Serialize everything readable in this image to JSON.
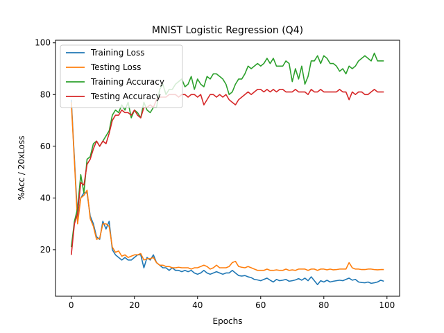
{
  "chart_data": {
    "type": "line",
    "title": "MNIST Logistic Regression (Q4)",
    "xlabel": "Epochs",
    "ylabel": "%Acc / 20xLoss",
    "xlim": [
      -5,
      104
    ],
    "ylim": [
      2,
      101
    ],
    "xticks": [
      0,
      20,
      40,
      60,
      80,
      100
    ],
    "yticks": [
      20,
      40,
      60,
      80,
      100
    ],
    "grid": false,
    "legend_position": "top-left",
    "x": [
      0,
      1,
      2,
      3,
      4,
      5,
      6,
      7,
      8,
      9,
      10,
      11,
      12,
      13,
      14,
      15,
      16,
      17,
      18,
      19,
      20,
      21,
      22,
      23,
      24,
      25,
      26,
      27,
      28,
      29,
      30,
      31,
      32,
      33,
      34,
      35,
      36,
      37,
      38,
      39,
      40,
      41,
      42,
      43,
      44,
      45,
      46,
      47,
      48,
      49,
      50,
      51,
      52,
      53,
      54,
      55,
      56,
      57,
      58,
      59,
      60,
      61,
      62,
      63,
      64,
      65,
      66,
      67,
      68,
      69,
      70,
      71,
      72,
      73,
      74,
      75,
      76,
      77,
      78,
      79,
      80,
      81,
      82,
      83,
      84,
      85,
      86,
      87,
      88,
      89,
      90,
      91,
      92,
      93,
      94,
      95,
      96,
      97,
      98,
      99
    ],
    "series": [
      {
        "name": "Training Loss",
        "color": "#1f77b4",
        "values": [
          78,
          55,
          32,
          40,
          42,
          42,
          33,
          30,
          25,
          24,
          31,
          28,
          31,
          20,
          18,
          17,
          16,
          17,
          16,
          16,
          17,
          18,
          18,
          13,
          17,
          16,
          18,
          15,
          14,
          13,
          13,
          12,
          13,
          12,
          12,
          11.5,
          12,
          11.5,
          12,
          11,
          10.5,
          11,
          12,
          11,
          10.5,
          11,
          11.5,
          11,
          10.5,
          11,
          11,
          12,
          11,
          10,
          9.8,
          10,
          9.5,
          9.2,
          8.5,
          8.3,
          8,
          8.5,
          9,
          8.2,
          7.5,
          8.5,
          8,
          8.2,
          8.5,
          7.8,
          8,
          8.3,
          8.8,
          8.2,
          9,
          8,
          9.5,
          8,
          6.5,
          8,
          7.5,
          8.2,
          7.5,
          7.8,
          8,
          8.2,
          8,
          8.5,
          9,
          8.2,
          8.5,
          7.5,
          7.3,
          7.2,
          7.5,
          7,
          7.2,
          7.5,
          8.2,
          7.8
        ]
      },
      {
        "name": "Testing Loss",
        "color": "#ff7f0e",
        "values": [
          77,
          54,
          30,
          40,
          41,
          43,
          32,
          29,
          24,
          24.5,
          30,
          30,
          29,
          21,
          19,
          19.5,
          17.5,
          18,
          17,
          17.5,
          18,
          18,
          18.5,
          16,
          16.5,
          16.5,
          17,
          15,
          14,
          14,
          13.5,
          13.5,
          13,
          13,
          13.2,
          13,
          13,
          13,
          12.5,
          13,
          13,
          13.5,
          14,
          13.5,
          12.5,
          13,
          14,
          13,
          13,
          13,
          13.5,
          15,
          15.5,
          13.5,
          13.2,
          13,
          13.5,
          13,
          12.5,
          12,
          12,
          12,
          12.5,
          12,
          12,
          12.2,
          12,
          12,
          12.5,
          12,
          12.2,
          12,
          12.5,
          12.5,
          12.5,
          12,
          12.5,
          12.5,
          12,
          12.5,
          12.5,
          12.2,
          12.5,
          12.2,
          12.3,
          12.5,
          12.5,
          12.5,
          15,
          13,
          12.5,
          12.5,
          12.3,
          12.3,
          12.5,
          12.5,
          12.3,
          12.2,
          12.3,
          12.3
        ]
      },
      {
        "name": "Training Accuracy",
        "color": "#2ca02c",
        "values": [
          21,
          31,
          36,
          49,
          42,
          55,
          56,
          61,
          62,
          60,
          62,
          64,
          66,
          72,
          74,
          73,
          76,
          74,
          77,
          71,
          74,
          73,
          71,
          77,
          74,
          73,
          75,
          75,
          82,
          84,
          80,
          82,
          82,
          84,
          85,
          86,
          83,
          84,
          87,
          82,
          86,
          84,
          83,
          87,
          86,
          88,
          88,
          87,
          86,
          84,
          80,
          81,
          84,
          86,
          86,
          88,
          91,
          90,
          91,
          92,
          91,
          92,
          94,
          92,
          94,
          91,
          91,
          91,
          93,
          92,
          85,
          90,
          86,
          91,
          84,
          87,
          93,
          93,
          95,
          92,
          95,
          94,
          92,
          92,
          91,
          89,
          90,
          88,
          91,
          90,
          91,
          93,
          94,
          95,
          94,
          93,
          96,
          93,
          93,
          93
        ]
      },
      {
        "name": "Testing Accuracy",
        "color": "#d62728",
        "values": [
          18,
          30,
          34,
          46,
          45,
          53,
          55,
          59,
          62,
          60,
          62,
          61,
          65,
          70,
          72,
          72,
          74,
          73,
          73,
          72,
          74,
          72,
          71,
          75,
          75,
          76,
          75,
          78,
          79,
          79,
          79,
          80,
          80,
          80,
          79,
          80,
          80,
          79,
          80,
          80,
          79,
          80,
          76,
          78,
          80,
          80,
          79,
          80,
          79,
          80,
          78,
          77,
          76,
          78,
          79,
          80,
          81,
          80,
          81,
          82,
          82,
          81,
          82,
          81,
          82,
          81,
          82,
          82,
          81,
          81,
          81,
          82,
          81,
          81,
          81,
          80,
          82,
          81,
          81,
          82,
          81,
          81,
          81,
          81,
          81,
          82,
          81,
          81,
          78,
          81,
          80,
          81,
          81,
          80,
          80,
          81,
          82,
          81,
          81,
          81
        ]
      }
    ]
  }
}
